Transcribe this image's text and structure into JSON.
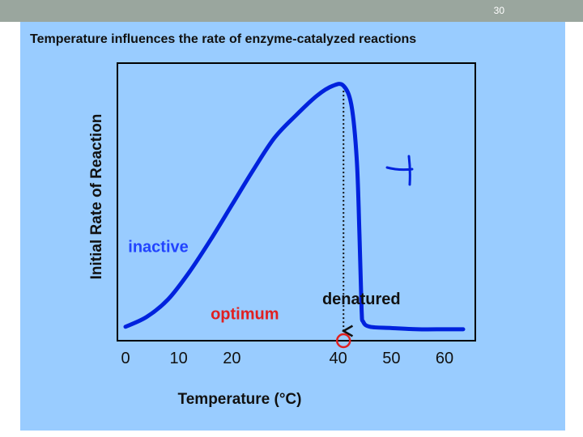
{
  "slide": {
    "number": "30"
  },
  "colors": {
    "background": "#99ccff",
    "curve": "#0022dd",
    "optimum": "#e02020",
    "header": "#9aa69e"
  },
  "chart_data": {
    "type": "line",
    "title": "Temperature influences the rate of enzyme-catalyzed reactions",
    "xlabel": "Temperature (°C)",
    "ylabel": "Initial Rate of Reaction",
    "xlim": [
      0,
      64
    ],
    "ylim": [
      0,
      1.05
    ],
    "x_ticks": [
      0,
      10,
      20,
      40,
      50,
      60
    ],
    "x_tick_labels": [
      "0",
      "10",
      "20",
      "40",
      "50",
      "60"
    ],
    "y_ticks_shown": false,
    "grid": false,
    "series": [
      {
        "color": "#0022dd",
        "points": [
          [
            0,
            0.03
          ],
          [
            4,
            0.07
          ],
          [
            8,
            0.14
          ],
          [
            12,
            0.25
          ],
          [
            16,
            0.38
          ],
          [
            20,
            0.52
          ],
          [
            24,
            0.66
          ],
          [
            28,
            0.79
          ],
          [
            32,
            0.88
          ],
          [
            36,
            0.96
          ],
          [
            39,
            1.0
          ],
          [
            41,
            1.0
          ],
          [
            42.5,
            0.92
          ],
          [
            43.5,
            0.7
          ],
          [
            44,
            0.4
          ],
          [
            44.4,
            0.1
          ],
          [
            44.7,
            0.05
          ],
          [
            46,
            0.03
          ],
          [
            50,
            0.025
          ],
          [
            55,
            0.02
          ],
          [
            60,
            0.02
          ],
          [
            63.5,
            0.02
          ]
        ]
      }
    ],
    "annotations": [
      {
        "text": "inactive",
        "color": "#2244ff",
        "x": 0.5,
        "y": 0.33
      },
      {
        "text": "optimum",
        "color": "#e02020",
        "x": 16,
        "y": 0.06
      },
      {
        "text": "denatured",
        "color": "#111111",
        "x": 37,
        "y": 0.12
      }
    ],
    "optimum_temperature": 41
  }
}
